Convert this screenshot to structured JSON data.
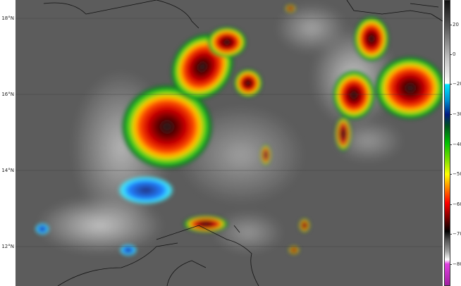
{
  "map": {
    "latitude_labels": [
      "18°N",
      "16°N",
      "14°N",
      "12°N"
    ]
  },
  "colorbar": {
    "ticks": [
      "20",
      "0",
      "−20",
      "−30",
      "−40",
      "−50",
      "−60",
      "−70",
      "−80"
    ],
    "colors": [
      "#1a1a1a",
      "#ffffff",
      "#00e5ff",
      "#001a80",
      "#00c000",
      "#ffff00",
      "#ff0000",
      "#000000",
      "#e040e0"
    ]
  }
}
